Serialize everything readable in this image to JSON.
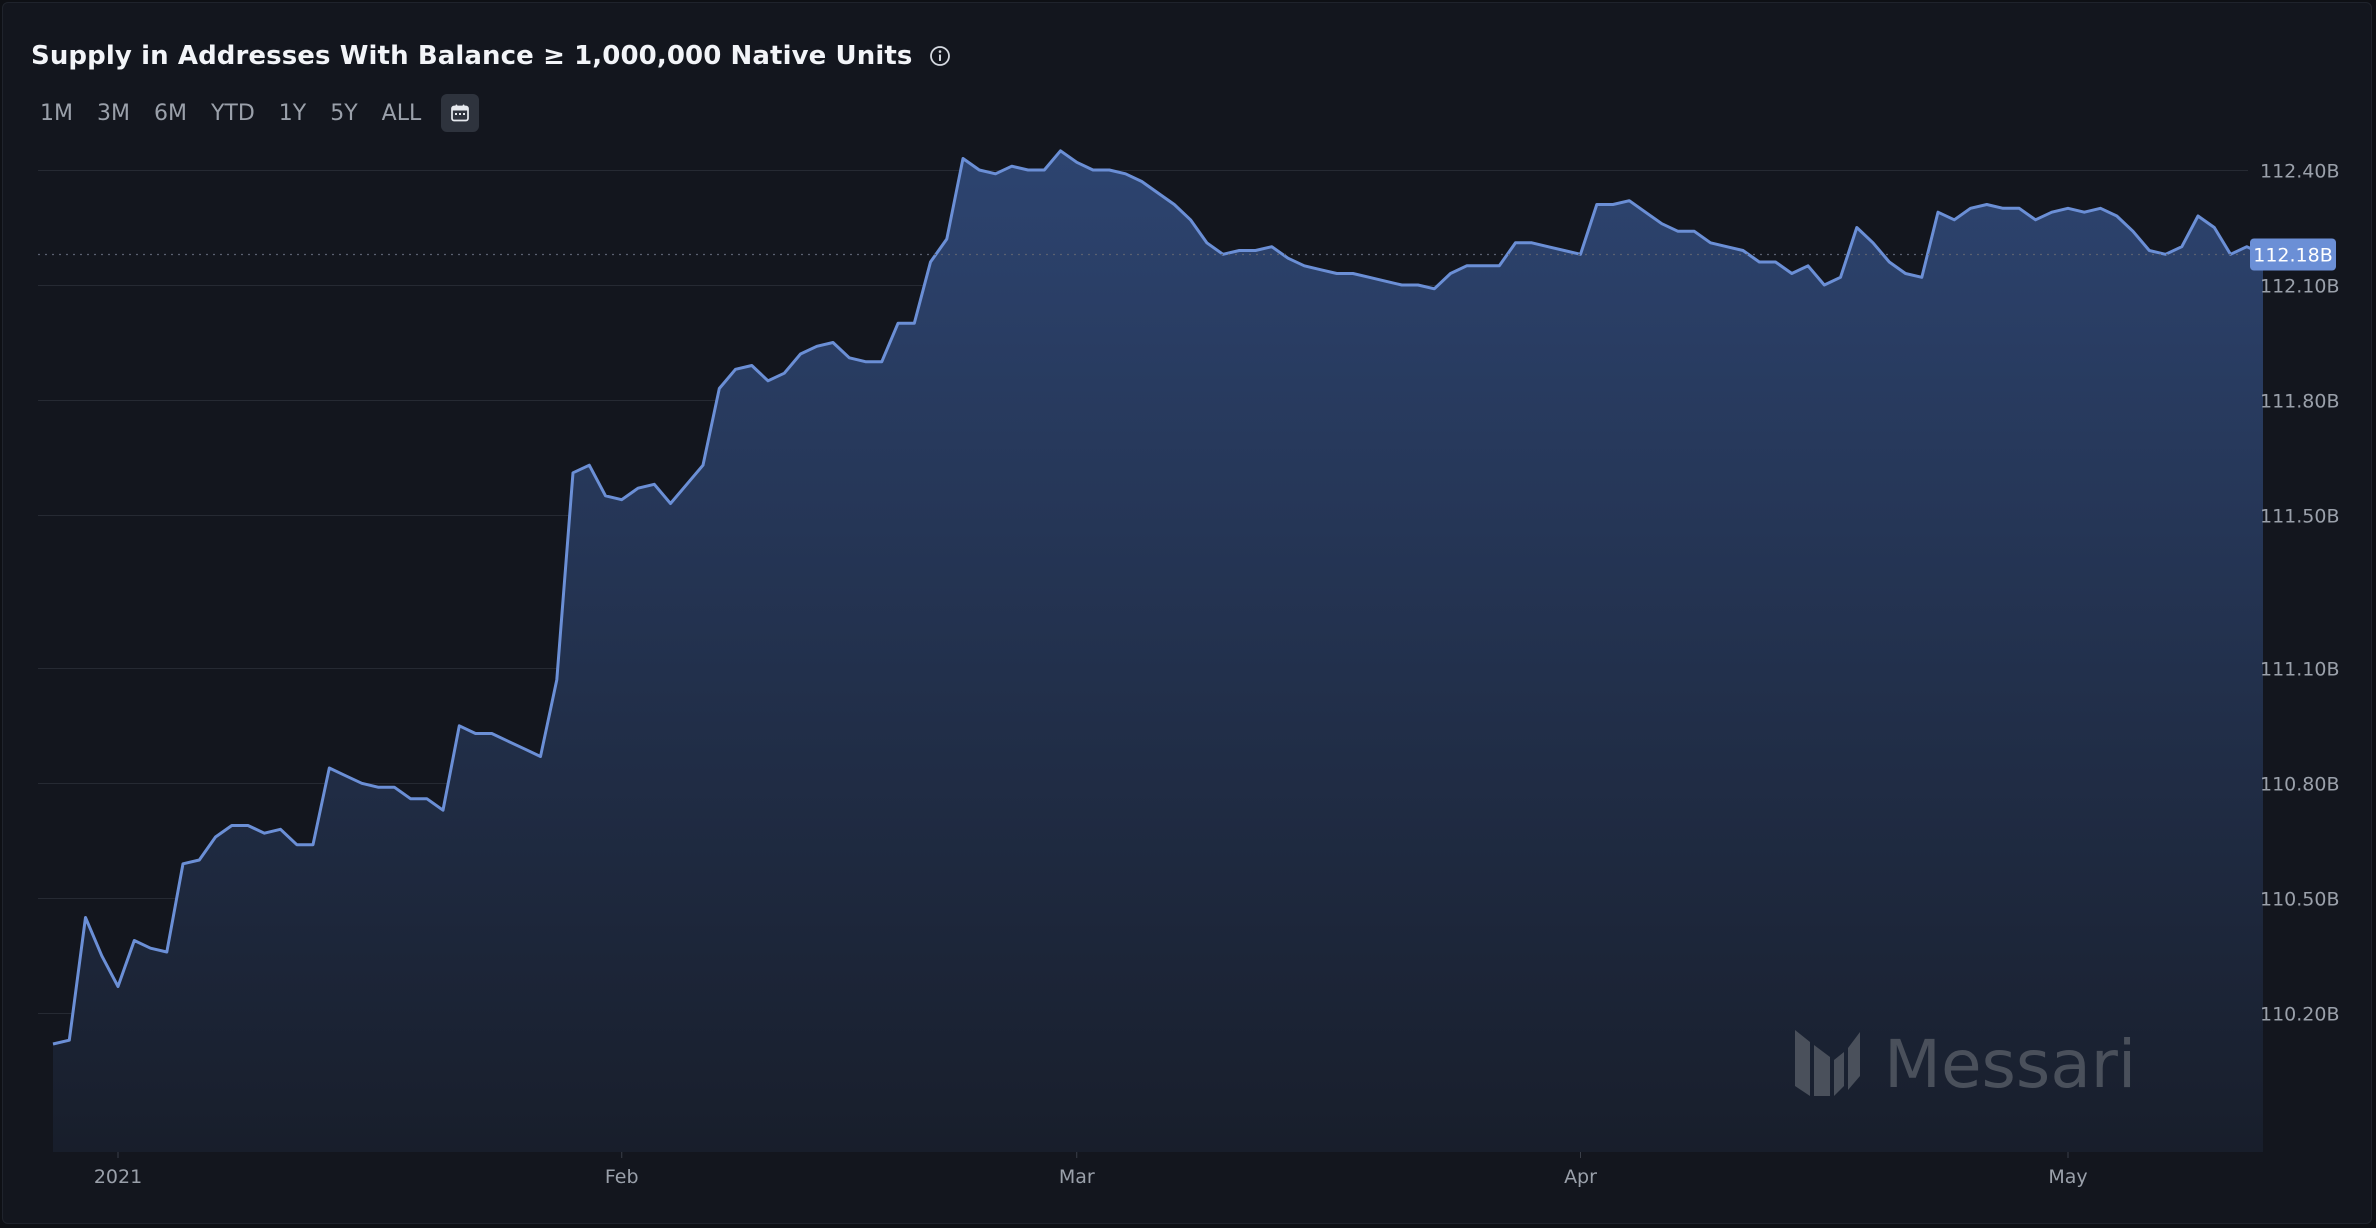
{
  "header": {
    "title": "Supply in Addresses With Balance ≥ 1,000,000 Native Units",
    "info_icon": "info-circle-icon"
  },
  "range_buttons": [
    "1M",
    "3M",
    "6M",
    "YTD",
    "1Y",
    "5Y",
    "ALL"
  ],
  "calendar_icon": "calendar-icon",
  "watermark": {
    "text": "Messari",
    "icon": "messari-logo-icon"
  },
  "colors": {
    "line": "#6b8fd6",
    "area_top": "#2d4470",
    "area_bottom": "#181e2b",
    "current_badge": "#6b8fd6",
    "background": "#13161e"
  },
  "chart_data": {
    "type": "area",
    "title": "Supply in Addresses With Balance ≥ 1,000,000 Native Units",
    "xlabel": "",
    "ylabel": "",
    "x_range": [
      "2020-12-28",
      "2021-05-13"
    ],
    "ylim": [
      110.0,
      112.6
    ],
    "y_ticks": [
      110.2,
      110.5,
      110.8,
      111.1,
      111.5,
      111.8,
      112.1,
      112.4
    ],
    "y_tick_labels": [
      "110.20B",
      "110.50B",
      "110.80B",
      "111.10B",
      "111.50B",
      "111.80B",
      "112.10B",
      "112.40B"
    ],
    "x_ticks": [
      "2021-01-01",
      "2021-02-01",
      "2021-03-01",
      "2021-04-01",
      "2021-05-01"
    ],
    "x_tick_labels": [
      "2021",
      "Feb",
      "Mar",
      "Apr",
      "May"
    ],
    "grid": true,
    "current_value": 112.18,
    "current_label": "112.18B",
    "series": [
      {
        "dates": [
          "2020-12-28",
          "2020-12-29",
          "2020-12-30",
          "2020-12-31",
          "2021-01-01",
          "2021-01-02",
          "2021-01-03",
          "2021-01-04",
          "2021-01-05",
          "2021-01-06",
          "2021-01-07",
          "2021-01-08",
          "2021-01-09",
          "2021-01-10",
          "2021-01-11",
          "2021-01-12",
          "2021-01-13",
          "2021-01-14",
          "2021-01-15",
          "2021-01-16",
          "2021-01-17",
          "2021-01-18",
          "2021-01-19",
          "2021-01-20",
          "2021-01-21",
          "2021-01-22",
          "2021-01-23",
          "2021-01-24",
          "2021-01-25",
          "2021-01-26",
          "2021-01-27",
          "2021-01-28",
          "2021-01-29",
          "2021-01-30",
          "2021-01-31",
          "2021-02-01",
          "2021-02-02",
          "2021-02-03",
          "2021-02-04",
          "2021-02-05",
          "2021-02-06",
          "2021-02-07",
          "2021-02-08",
          "2021-02-09",
          "2021-02-10",
          "2021-02-11",
          "2021-02-12",
          "2021-02-13",
          "2021-02-14",
          "2021-02-15",
          "2021-02-16",
          "2021-02-17",
          "2021-02-18",
          "2021-02-19",
          "2021-02-20",
          "2021-02-21",
          "2021-02-22",
          "2021-02-23",
          "2021-02-24",
          "2021-02-25",
          "2021-02-26",
          "2021-02-27",
          "2021-02-28",
          "2021-03-01",
          "2021-03-02",
          "2021-03-03",
          "2021-03-04",
          "2021-03-05",
          "2021-03-06",
          "2021-03-07",
          "2021-03-08",
          "2021-03-09",
          "2021-03-10",
          "2021-03-11",
          "2021-03-12",
          "2021-03-13",
          "2021-03-14",
          "2021-03-15",
          "2021-03-16",
          "2021-03-17",
          "2021-03-18",
          "2021-03-19",
          "2021-03-20",
          "2021-03-21",
          "2021-03-22",
          "2021-03-23",
          "2021-03-24",
          "2021-03-25",
          "2021-03-26",
          "2021-03-27",
          "2021-03-28",
          "2021-03-29",
          "2021-03-30",
          "2021-03-31",
          "2021-04-01",
          "2021-04-02",
          "2021-04-03",
          "2021-04-04",
          "2021-04-05",
          "2021-04-06",
          "2021-04-07",
          "2021-04-08",
          "2021-04-09",
          "2021-04-10",
          "2021-04-11",
          "2021-04-12",
          "2021-04-13",
          "2021-04-14",
          "2021-04-15",
          "2021-04-16",
          "2021-04-17",
          "2021-04-18",
          "2021-04-19",
          "2021-04-20",
          "2021-04-21",
          "2021-04-22",
          "2021-04-23",
          "2021-04-24",
          "2021-04-25",
          "2021-04-26",
          "2021-04-27",
          "2021-04-28",
          "2021-04-29",
          "2021-04-30",
          "2021-05-01",
          "2021-05-02",
          "2021-05-03",
          "2021-05-04",
          "2021-05-05",
          "2021-05-06",
          "2021-05-07",
          "2021-05-08",
          "2021-05-09",
          "2021-05-10",
          "2021-05-11",
          "2021-05-12",
          "2021-05-13"
        ],
        "values": [
          110.12,
          110.13,
          110.45,
          110.35,
          110.27,
          110.39,
          110.37,
          110.36,
          110.59,
          110.6,
          110.66,
          110.69,
          110.69,
          110.67,
          110.68,
          110.64,
          110.64,
          110.84,
          110.82,
          110.8,
          110.79,
          110.79,
          110.76,
          110.76,
          110.73,
          110.95,
          110.93,
          110.93,
          110.91,
          110.89,
          110.87,
          111.07,
          111.61,
          111.63,
          111.55,
          111.54,
          111.57,
          111.58,
          111.53,
          111.58,
          111.63,
          111.83,
          111.88,
          111.89,
          111.85,
          111.87,
          111.92,
          111.94,
          111.95,
          111.91,
          111.9,
          111.9,
          112.0,
          112.0,
          112.16,
          112.22,
          112.43,
          112.4,
          112.39,
          112.41,
          112.4,
          112.4,
          112.45,
          112.42,
          112.4,
          112.4,
          112.39,
          112.37,
          112.34,
          112.31,
          112.27,
          112.21,
          112.18,
          112.19,
          112.19,
          112.2,
          112.17,
          112.15,
          112.14,
          112.13,
          112.13,
          112.12,
          112.11,
          112.1,
          112.1,
          112.09,
          112.13,
          112.15,
          112.15,
          112.15,
          112.21,
          112.21,
          112.2,
          112.19,
          112.18,
          112.31,
          112.31,
          112.32,
          112.29,
          112.26,
          112.24,
          112.24,
          112.21,
          112.2,
          112.19,
          112.16,
          112.16,
          112.13,
          112.15,
          112.1,
          112.12,
          112.25,
          112.21,
          112.16,
          112.13,
          112.12,
          112.29,
          112.27,
          112.3,
          112.31,
          112.3,
          112.3,
          112.27,
          112.29,
          112.3,
          112.29,
          112.3,
          112.28,
          112.24,
          112.19,
          112.18,
          112.2,
          112.28,
          112.25,
          112.18,
          112.2,
          112.18
        ]
      }
    ]
  }
}
